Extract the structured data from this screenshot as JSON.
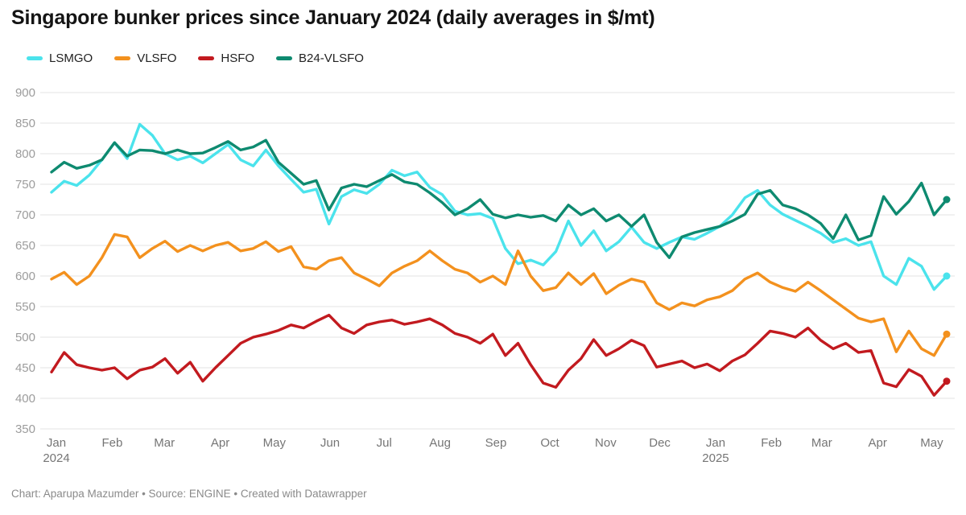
{
  "title": "Singapore bunker prices since January 2024 (daily averages in $/mt)",
  "footer": "Chart: Aparupa Mazumder • Source: ENGINE • Created with Datawrapper",
  "colors": {
    "grid": "#e3e3e3",
    "y_label": "#9c9c9c",
    "x_label": "#757575",
    "title": "#141414",
    "background": "#ffffff"
  },
  "chart_data": {
    "type": "line",
    "title": "Singapore bunker prices since January 2024 (daily averages in $/mt)",
    "xlabel": "",
    "ylabel": "$/mt",
    "ylim": [
      350,
      900
    ],
    "grid": "horizontal",
    "legend_position": "top-left",
    "end_point_dots": true,
    "y_ticks": [
      350,
      400,
      450,
      500,
      550,
      600,
      650,
      700,
      750,
      800,
      850,
      900
    ],
    "x_ticks": [
      {
        "label": "Jan",
        "sub": "2024",
        "week": 0
      },
      {
        "label": "Feb",
        "week": 4.43
      },
      {
        "label": "Mar",
        "week": 8.57
      },
      {
        "label": "Apr",
        "week": 13.0
      },
      {
        "label": "May",
        "week": 17.29
      },
      {
        "label": "Jun",
        "week": 21.71
      },
      {
        "label": "Jul",
        "week": 26.0
      },
      {
        "label": "Aug",
        "week": 30.43
      },
      {
        "label": "Sep",
        "week": 34.86
      },
      {
        "label": "Oct",
        "week": 39.14
      },
      {
        "label": "Nov",
        "week": 43.57
      },
      {
        "label": "Dec",
        "week": 47.86
      },
      {
        "label": "Jan",
        "sub": "2025",
        "week": 52.29
      },
      {
        "label": "Feb",
        "week": 56.71
      },
      {
        "label": "Mar",
        "week": 60.71
      },
      {
        "label": "Apr",
        "week": 65.14
      },
      {
        "label": "May",
        "week": 69.43
      }
    ],
    "x_unit": "weeks since 1 Jan 2024 (weekly samples to mid-May 2025)",
    "weeks_total": 71,
    "series": [
      {
        "name": "LSMGO",
        "color": "#4be3ec",
        "values": [
          737,
          755,
          748,
          765,
          790,
          818,
          792,
          848,
          830,
          800,
          790,
          796,
          785,
          800,
          815,
          790,
          780,
          806,
          780,
          758,
          737,
          742,
          685,
          730,
          741,
          735,
          750,
          773,
          764,
          770,
          745,
          733,
          706,
          700,
          702,
          694,
          645,
          620,
          626,
          618,
          640,
          690,
          650,
          674,
          641,
          656,
          680,
          655,
          645,
          655,
          664,
          660,
          670,
          681,
          700,
          728,
          740,
          716,
          701,
          691,
          681,
          670,
          655,
          661,
          650,
          656,
          600,
          586,
          629,
          616,
          578,
          600
        ]
      },
      {
        "name": "VLSFO",
        "color": "#f3911e",
        "values": [
          595,
          606,
          586,
          600,
          630,
          668,
          664,
          630,
          645,
          657,
          640,
          650,
          641,
          650,
          655,
          641,
          645,
          656,
          640,
          648,
          615,
          611,
          625,
          630,
          605,
          595,
          584,
          605,
          616,
          625,
          641,
          625,
          611,
          605,
          590,
          600,
          586,
          641,
          600,
          576,
          581,
          605,
          586,
          604,
          571,
          585,
          595,
          590,
          556,
          545,
          556,
          551,
          561,
          566,
          576,
          595,
          605,
          590,
          581,
          575,
          590,
          576,
          561,
          546,
          531,
          525,
          530,
          476,
          510,
          481,
          470,
          505
        ]
      },
      {
        "name": "HSFO",
        "color": "#c21a1f",
        "values": [
          443,
          475,
          455,
          450,
          446,
          450,
          432,
          446,
          451,
          465,
          441,
          459,
          428,
          450,
          470,
          490,
          500,
          505,
          511,
          520,
          515,
          526,
          536,
          515,
          506,
          520,
          525,
          528,
          521,
          525,
          530,
          520,
          506,
          500,
          490,
          505,
          470,
          490,
          455,
          425,
          418,
          446,
          465,
          496,
          470,
          481,
          495,
          486,
          451,
          456,
          461,
          450,
          456,
          445,
          461,
          471,
          490,
          510,
          506,
          500,
          515,
          495,
          481,
          490,
          475,
          478,
          425,
          419,
          447,
          436,
          405,
          428
        ]
      },
      {
        "name": "B24-VLSFO",
        "color": "#0e8a70",
        "values": [
          770,
          786,
          776,
          781,
          790,
          818,
          796,
          806,
          805,
          800,
          806,
          800,
          801,
          810,
          820,
          806,
          811,
          822,
          786,
          768,
          750,
          756,
          708,
          744,
          750,
          746,
          756,
          766,
          754,
          750,
          736,
          720,
          700,
          710,
          725,
          701,
          695,
          700,
          696,
          699,
          690,
          716,
          700,
          710,
          690,
          700,
          681,
          700,
          655,
          630,
          664,
          671,
          676,
          681,
          690,
          701,
          734,
          740,
          716,
          710,
          700,
          686,
          661,
          700,
          659,
          666,
          730,
          701,
          722,
          752,
          700,
          725
        ]
      }
    ]
  }
}
